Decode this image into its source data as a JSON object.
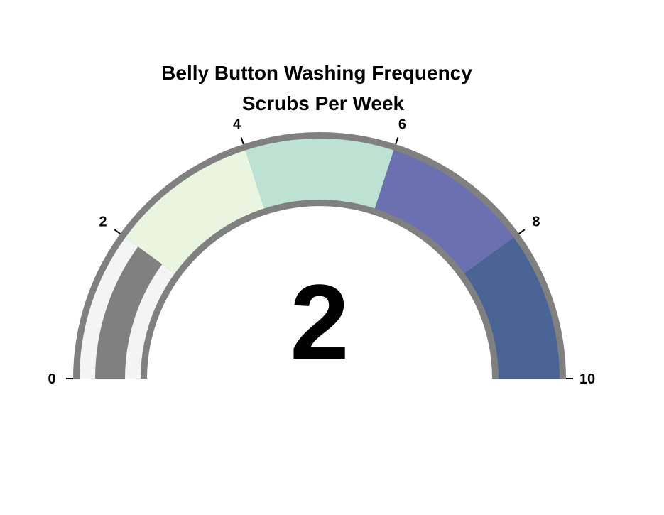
{
  "chart_data": {
    "type": "gauge",
    "title": "Belly Button Washing Frequency",
    "subtitle": "Scrubs Per Week",
    "value": 2,
    "value_label": "2",
    "range": [
      0,
      10
    ],
    "ticks": [
      {
        "value": 0,
        "label": "0"
      },
      {
        "value": 2,
        "label": "2"
      },
      {
        "value": 4,
        "label": "4"
      },
      {
        "value": 6,
        "label": "6"
      },
      {
        "value": 8,
        "label": "8"
      },
      {
        "value": 10,
        "label": "10"
      }
    ],
    "bands": [
      {
        "from": 0,
        "to": 2,
        "color": "#f4f4f4"
      },
      {
        "from": 2,
        "to": 4,
        "color": "#eaf5df"
      },
      {
        "from": 4,
        "to": 6,
        "color": "#bde2d3"
      },
      {
        "from": 6,
        "to": 8,
        "color": "#6b70b0"
      },
      {
        "from": 8,
        "to": 10,
        "color": "#4a6595"
      }
    ],
    "bar_color": "#808080",
    "border_color": "#808080"
  }
}
